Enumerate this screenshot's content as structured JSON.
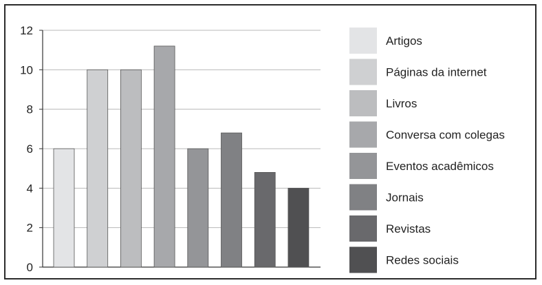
{
  "chart_data": {
    "type": "bar",
    "title": "",
    "xlabel": "",
    "ylabel": "",
    "ylim": [
      0,
      12
    ],
    "yticks": [
      "0",
      "2",
      "4",
      "6",
      "8",
      "10",
      "12"
    ],
    "grid": true,
    "legend_position": "right",
    "categories": [
      "Artigos",
      "Páginas da internet",
      "Livros",
      "Conversa com colegas",
      "Eventos acadêmicos",
      "Jornais",
      "Revistas",
      "Redes sociais"
    ],
    "values": [
      6,
      10,
      10,
      11.2,
      6,
      6.8,
      4.8,
      4
    ],
    "colors": [
      "#e3e4e6",
      "#cfd0d2",
      "#bcbdbf",
      "#a7a8ab",
      "#949598",
      "#808184",
      "#69696c",
      "#505052"
    ]
  }
}
